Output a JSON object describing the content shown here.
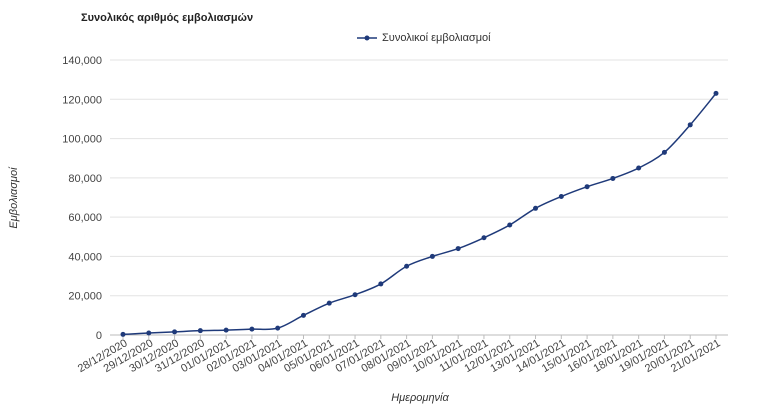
{
  "chart_data": {
    "type": "line",
    "title": "Συνολικός αριθμός εμβολιασμών",
    "xlabel": "Ημερομηνία",
    "ylabel": "Εμβολιασμοί",
    "ylim": [
      0,
      140000
    ],
    "yticks": [
      "0",
      "20,000",
      "40,000",
      "60,000",
      "80,000",
      "100,000",
      "120,000",
      "140,000"
    ],
    "grid": true,
    "legend_position": "top-center",
    "categories": [
      "28/12/2020",
      "29/12/2020",
      "30/12/2020",
      "31/12/2020",
      "01/01/2021",
      "02/01/2021",
      "03/01/2021",
      "04/01/2021",
      "05/01/2021",
      "06/01/2021",
      "07/01/2021",
      "08/01/2021",
      "09/01/2021",
      "10/01/2021",
      "11/01/2021",
      "12/01/2021",
      "13/01/2021",
      "14/01/2021",
      "15/01/2021",
      "16/01/2021",
      "18/01/2021",
      "19/01/2021",
      "20/01/2021",
      "21/01/2021"
    ],
    "series": [
      {
        "name": "Συνολικοί εμβολιασμοί",
        "color": "#1f3a7a",
        "values": [
          300,
          1000,
          1600,
          2200,
          2500,
          3000,
          3500,
          10000,
          16200,
          20500,
          26000,
          35000,
          40000,
          44000,
          49500,
          56000,
          64500,
          70500,
          75500,
          79700,
          85000,
          93000,
          107000,
          123000
        ]
      }
    ]
  }
}
